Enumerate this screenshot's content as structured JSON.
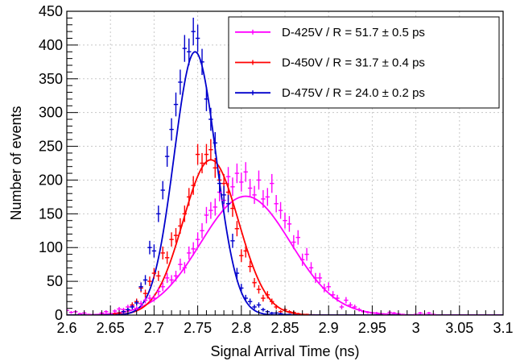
{
  "chart_data": {
    "type": "scatter",
    "title": "",
    "xlabel": "Signal Arrival Time (ns)",
    "ylabel": "Number of events",
    "xlim": [
      2.6,
      3.1
    ],
    "ylim": [
      0,
      450
    ],
    "xticks": [
      2.6,
      2.65,
      2.7,
      2.75,
      2.8,
      2.85,
      2.9,
      2.95,
      3,
      3.05,
      3.1
    ],
    "xtick_labels": [
      "2.6",
      "2.65",
      "2.7",
      "2.75",
      "2.8",
      "2.85",
      "2.9",
      "2.95",
      "3",
      "3.05",
      "3.1"
    ],
    "yticks": [
      0,
      50,
      100,
      150,
      200,
      250,
      300,
      350,
      400,
      450
    ],
    "ytick_labels": [
      "0",
      "50",
      "100",
      "150",
      "200",
      "250",
      "300",
      "350",
      "400",
      "450"
    ],
    "grid": true,
    "legend_position": "top-right",
    "series": [
      {
        "name": "D-425V / R = 51.7 ± 0.5 ps",
        "color": "#ff00ff",
        "fit": {
          "type": "gaussian",
          "amplitude": 176,
          "mean": 2.805,
          "sigma": 0.0517
        },
        "x": [
          2.6,
          2.605,
          2.61,
          2.615,
          2.62,
          2.625,
          2.63,
          2.635,
          2.64,
          2.645,
          2.65,
          2.655,
          2.66,
          2.665,
          2.67,
          2.675,
          2.68,
          2.685,
          2.69,
          2.695,
          2.7,
          2.705,
          2.71,
          2.715,
          2.72,
          2.725,
          2.73,
          2.735,
          2.74,
          2.745,
          2.75,
          2.755,
          2.76,
          2.765,
          2.77,
          2.775,
          2.78,
          2.785,
          2.79,
          2.795,
          2.8,
          2.805,
          2.81,
          2.815,
          2.82,
          2.825,
          2.83,
          2.835,
          2.84,
          2.845,
          2.85,
          2.855,
          2.86,
          2.865,
          2.87,
          2.875,
          2.88,
          2.885,
          2.89,
          2.895,
          2.9,
          2.905,
          2.91,
          2.915,
          2.92,
          2.925,
          2.93,
          2.935,
          2.94,
          2.945,
          2.95,
          2.955,
          2.96,
          2.965,
          2.97,
          2.975,
          2.98,
          2.985,
          2.99,
          2.995,
          3.0,
          3.005,
          3.01,
          3.015,
          3.02,
          3.025,
          3.03,
          3.035,
          3.04,
          3.045,
          3.05,
          3.055,
          3.06,
          3.065,
          3.07,
          3.075,
          3.08,
          3.085,
          3.09,
          3.095
        ],
        "y": [
          7,
          4,
          5,
          2,
          3,
          1,
          0,
          0,
          3,
          5,
          2,
          6,
          9,
          8,
          12,
          13,
          10,
          17,
          22,
          25,
          25,
          35,
          42,
          55,
          52,
          58,
          75,
          70,
          92,
          98,
          112,
          125,
          148,
          155,
          160,
          182,
          170,
          205,
          190,
          210,
          197,
          212,
          188,
          178,
          200,
          172,
          175,
          195,
          165,
          155,
          140,
          135,
          108,
          115,
          82,
          90,
          70,
          55,
          55,
          40,
          42,
          30,
          25,
          12,
          22,
          15,
          12,
          8,
          5,
          4,
          3,
          3,
          2,
          1,
          4,
          3,
          2,
          1,
          0,
          0,
          1,
          3,
          1,
          3,
          1,
          0,
          0,
          0,
          0,
          0,
          0,
          0,
          0,
          0,
          0,
          0,
          0,
          0,
          0,
          0
        ]
      },
      {
        "name": "D-450V / R = 31.7 ± 0.4 ps",
        "color": "#ff0000",
        "fit": {
          "type": "gaussian",
          "amplitude": 230,
          "mean": 2.765,
          "sigma": 0.0317
        },
        "x": [
          2.655,
          2.66,
          2.665,
          2.67,
          2.675,
          2.68,
          2.685,
          2.69,
          2.695,
          2.7,
          2.705,
          2.71,
          2.715,
          2.72,
          2.725,
          2.73,
          2.735,
          2.74,
          2.745,
          2.75,
          2.755,
          2.76,
          2.765,
          2.77,
          2.775,
          2.78,
          2.785,
          2.79,
          2.795,
          2.8,
          2.805,
          2.81,
          2.815,
          2.82,
          2.825,
          2.83,
          2.835,
          2.84,
          2.845,
          2.85,
          2.855,
          2.86,
          2.865,
          2.87,
          2.875
        ],
        "y": [
          2,
          3,
          5,
          8,
          15,
          20,
          40,
          32,
          50,
          62,
          58,
          92,
          85,
          112,
          118,
          132,
          150,
          175,
          192,
          238,
          225,
          238,
          245,
          218,
          200,
          195,
          182,
          158,
          128,
          88,
          95,
          72,
          48,
          38,
          25,
          30,
          20,
          12,
          5,
          8,
          5,
          4,
          2,
          1,
          1
        ]
      },
      {
        "name": "D-475V / R = 24.0 ± 0.2 ps",
        "color": "#0000cc",
        "fit": {
          "type": "gaussian",
          "amplitude": 390,
          "mean": 2.747,
          "sigma": 0.024
        },
        "x": [
          2.665,
          2.67,
          2.675,
          2.68,
          2.685,
          2.69,
          2.695,
          2.7,
          2.705,
          2.71,
          2.715,
          2.72,
          2.725,
          2.73,
          2.735,
          2.74,
          2.745,
          2.75,
          2.755,
          2.76,
          2.765,
          2.77,
          2.775,
          2.78,
          2.785,
          2.79,
          2.795,
          2.8,
          2.805,
          2.81,
          2.815,
          2.82,
          2.825,
          2.83,
          2.835,
          2.84,
          2.845,
          2.85,
          2.855,
          2.86
        ],
        "y": [
          5,
          8,
          12,
          18,
          42,
          52,
          100,
          95,
          150,
          185,
          235,
          275,
          312,
          345,
          395,
          390,
          420,
          410,
          375,
          320,
          290,
          255,
          195,
          178,
          165,
          110,
          62,
          40,
          25,
          20,
          12,
          15,
          8,
          5,
          3,
          3,
          2,
          1,
          1,
          0
        ]
      }
    ]
  }
}
